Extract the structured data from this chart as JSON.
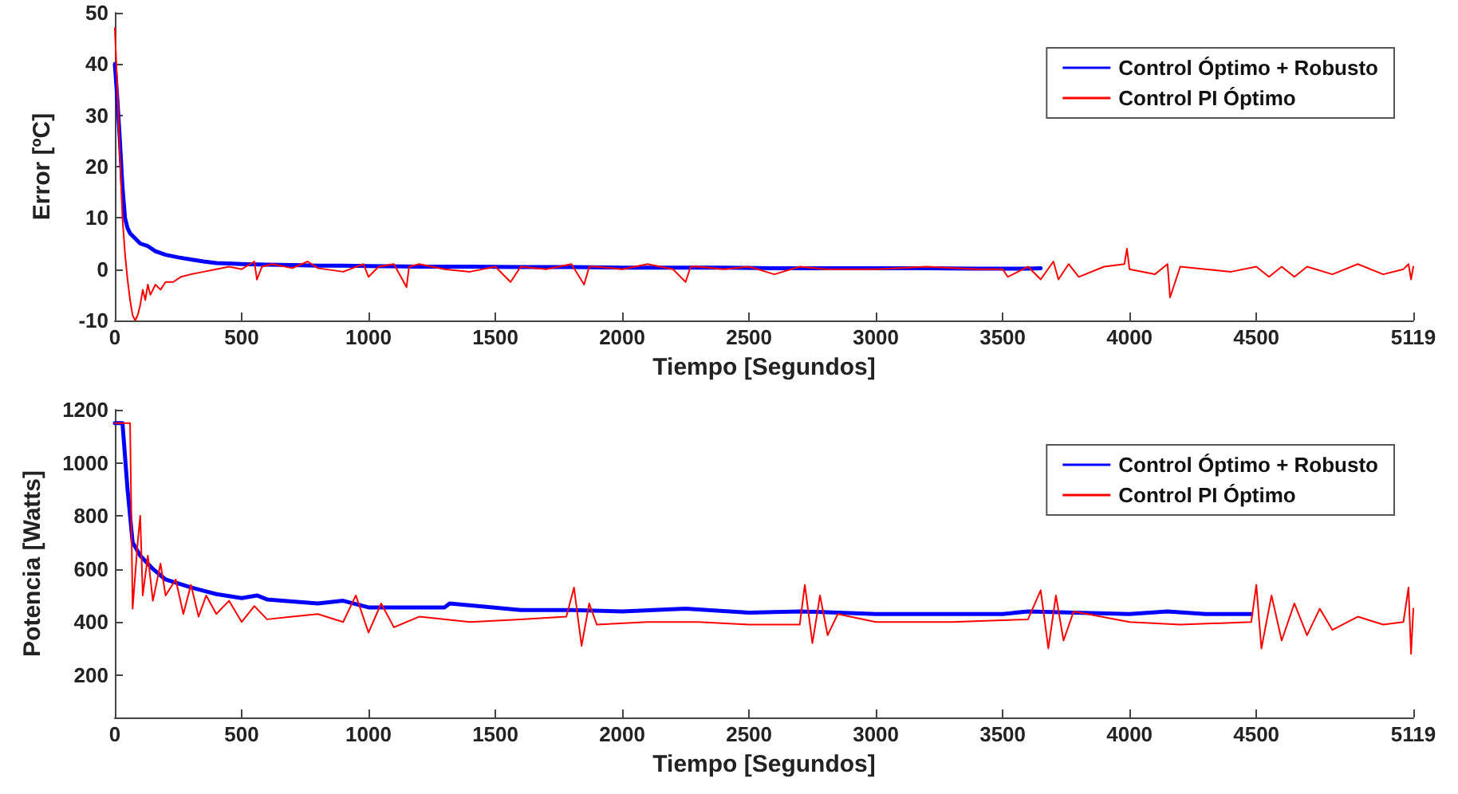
{
  "chart_data": [
    {
      "type": "line",
      "xlabel": "Tiempo [Segundos]",
      "ylabel": "Error [ºC]",
      "xlim": [
        0,
        5119
      ],
      "xticks": [
        0,
        500,
        1000,
        1500,
        2000,
        2500,
        3000,
        3500,
        4000,
        4500,
        5119
      ],
      "ylim": [
        -10,
        50
      ],
      "yticks": [
        -10,
        0,
        10,
        20,
        30,
        40,
        50
      ],
      "grid": false,
      "legend": "top right",
      "marker": "none",
      "line_style": "solid",
      "series": [
        {
          "name": "Control Óptimo + Robusto",
          "color": "#0000ff",
          "x": [
            0,
            10,
            20,
            30,
            40,
            50,
            60,
            80,
            100,
            130,
            160,
            200,
            250,
            300,
            350,
            400,
            450,
            500,
            600,
            700,
            800,
            900,
            1000,
            1200,
            1400,
            1600,
            1800,
            2000,
            2200,
            2400,
            2600,
            2800,
            3000,
            3200,
            3400,
            3600,
            3650
          ],
          "values": [
            40,
            33,
            25,
            16,
            10,
            8,
            7,
            6,
            5,
            4.5,
            3.5,
            2.8,
            2.3,
            1.9,
            1.5,
            1.2,
            1.1,
            1,
            0.9,
            0.8,
            0.7,
            0.7,
            0.6,
            0.5,
            0.5,
            0.4,
            0.4,
            0.3,
            0.3,
            0.3,
            0.2,
            0.2,
            0.2,
            0.2,
            0.1,
            0.1,
            0.2
          ]
        },
        {
          "name": "Control PI Óptimo",
          "color": "#ff0000",
          "x": [
            0,
            10,
            20,
            30,
            40,
            50,
            60,
            70,
            80,
            90,
            100,
            110,
            120,
            130,
            140,
            160,
            180,
            200,
            230,
            260,
            300,
            350,
            400,
            450,
            500,
            550,
            560,
            580,
            620,
            700,
            760,
            800,
            900,
            980,
            1000,
            1040,
            1100,
            1150,
            1160,
            1200,
            1300,
            1400,
            1500,
            1560,
            1600,
            1700,
            1800,
            1850,
            1870,
            1900,
            2000,
            2100,
            2200,
            2250,
            2270,
            2300,
            2400,
            2500,
            2600,
            2700,
            2800,
            3000,
            3200,
            3400,
            3500,
            3520,
            3600,
            3650,
            3700,
            3720,
            3760,
            3800,
            3900,
            3980,
            3990,
            4000,
            4100,
            4150,
            4160,
            4200,
            4300,
            4400,
            4500,
            4550,
            4600,
            4650,
            4700,
            4800,
            4900,
            5000,
            5080,
            5100,
            5110,
            5119
          ],
          "values": [
            47,
            35,
            22,
            10,
            3,
            -2,
            -6,
            -9,
            -10,
            -9,
            -7,
            -4,
            -6,
            -3,
            -5,
            -3,
            -4,
            -2.5,
            -2.5,
            -1.5,
            -1,
            -0.5,
            0,
            0.5,
            0,
            1.5,
            -2,
            0.5,
            1,
            0.2,
            1.5,
            0.2,
            -0.5,
            1,
            -1.5,
            0.5,
            1,
            -3.5,
            0.5,
            1,
            0,
            -0.5,
            0.5,
            -2.5,
            0.5,
            0,
            1,
            -3,
            0.5,
            0.5,
            0,
            1,
            0,
            -2.5,
            0.5,
            0.5,
            0,
            0.5,
            -1,
            0.5,
            0,
            0,
            0.5,
            0,
            0,
            -1.5,
            0.5,
            -2,
            1.5,
            -2,
            1,
            -1.5,
            0.5,
            1,
            4,
            0,
            -1,
            1,
            -5.5,
            0.5,
            0,
            -0.5,
            0.5,
            -1.5,
            0.5,
            -1.5,
            0.5,
            -1,
            1,
            -1,
            0,
            1,
            -2,
            0.5
          ]
        }
      ]
    },
    {
      "type": "line",
      "xlabel": "Tiempo [Segundos]",
      "ylabel": "Potencia [Watts]",
      "xlim": [
        0,
        5119
      ],
      "xticks": [
        0,
        500,
        1000,
        1500,
        2000,
        2500,
        3000,
        3500,
        4000,
        4500,
        5119
      ],
      "ylim": [
        40,
        1200
      ],
      "yticks": [
        200,
        400,
        600,
        800,
        1000,
        1200
      ],
      "grid": false,
      "legend": "top right",
      "marker": "none",
      "line_style": "solid",
      "series": [
        {
          "name": "Control Óptimo + Robusto",
          "color": "#0000ff",
          "x": [
            0,
            30,
            50,
            70,
            100,
            150,
            200,
            300,
            400,
            500,
            560,
            600,
            800,
            900,
            1000,
            1300,
            1320,
            1600,
            1800,
            2000,
            2250,
            2500,
            2700,
            3000,
            3500,
            3600,
            4000,
            4150,
            4300,
            4480
          ],
          "values": [
            1150,
            1150,
            900,
            700,
            650,
            600,
            560,
            530,
            505,
            490,
            500,
            485,
            470,
            480,
            455,
            455,
            470,
            445,
            445,
            440,
            450,
            435,
            440,
            430,
            430,
            440,
            430,
            440,
            430,
            430
          ]
        },
        {
          "name": "Control PI Óptimo",
          "color": "#ff0000",
          "x": [
            0,
            60,
            70,
            90,
            100,
            110,
            130,
            150,
            180,
            200,
            240,
            270,
            300,
            330,
            360,
            400,
            450,
            500,
            550,
            600,
            700,
            800,
            900,
            950,
            1000,
            1050,
            1100,
            1200,
            1400,
            1600,
            1780,
            1810,
            1840,
            1870,
            1900,
            2100,
            2300,
            2500,
            2700,
            2720,
            2750,
            2780,
            2810,
            2850,
            3000,
            3300,
            3600,
            3650,
            3680,
            3710,
            3740,
            3780,
            4000,
            4200,
            4480,
            4500,
            4520,
            4560,
            4600,
            4650,
            4700,
            4750,
            4800,
            4900,
            5000,
            5080,
            5100,
            5110,
            5119
          ],
          "values": [
            1150,
            1150,
            450,
            700,
            800,
            500,
            650,
            480,
            620,
            500,
            560,
            430,
            540,
            420,
            500,
            430,
            480,
            400,
            460,
            410,
            420,
            430,
            400,
            500,
            360,
            470,
            380,
            420,
            400,
            410,
            420,
            530,
            310,
            470,
            390,
            400,
            400,
            390,
            390,
            540,
            320,
            500,
            350,
            430,
            400,
            400,
            410,
            520,
            300,
            500,
            330,
            440,
            400,
            390,
            400,
            540,
            300,
            500,
            330,
            470,
            350,
            450,
            370,
            420,
            390,
            400,
            530,
            280,
            450
          ]
        }
      ]
    }
  ]
}
